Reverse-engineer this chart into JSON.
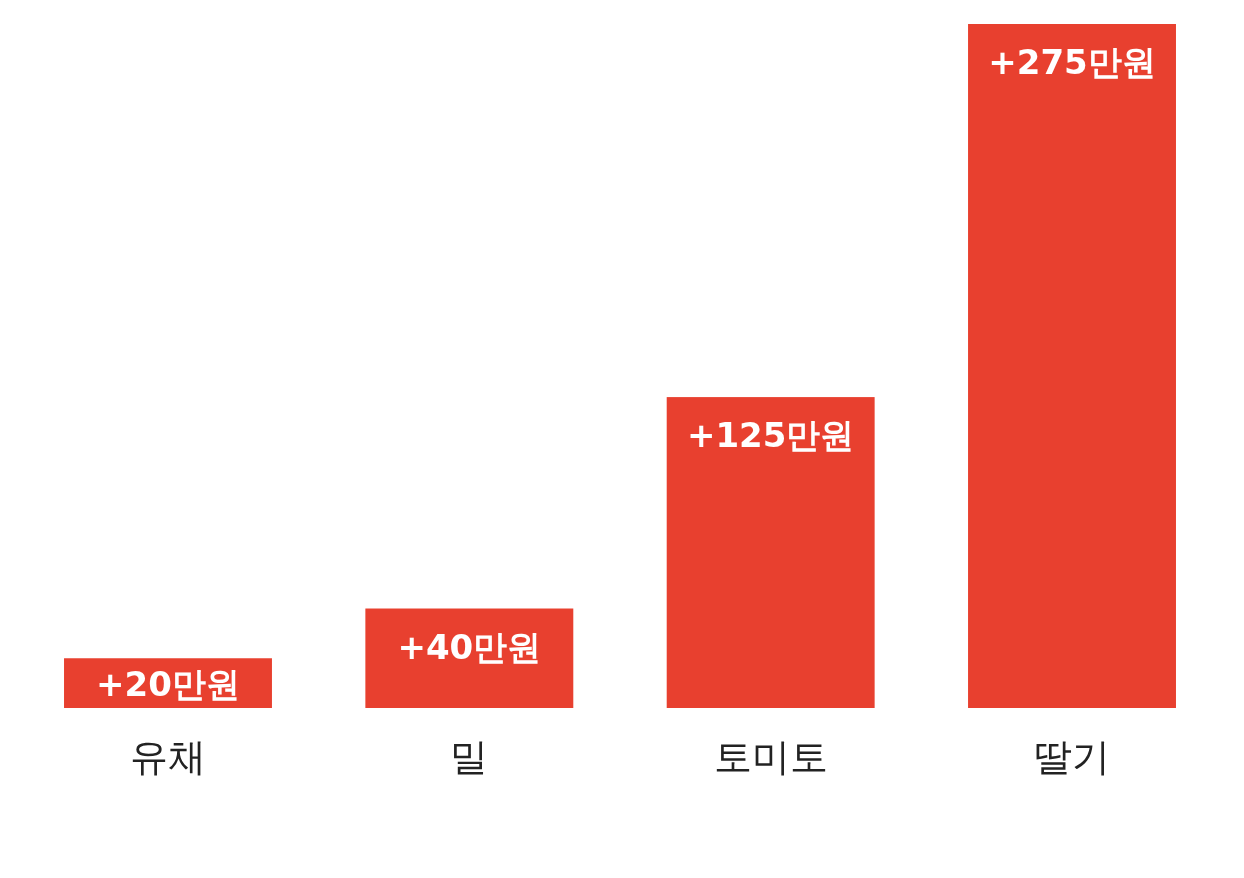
{
  "chart_data": {
    "type": "bar",
    "categories": [
      "유채",
      "밀",
      "토미토",
      "딸기"
    ],
    "values": [
      20,
      40,
      125,
      275
    ],
    "color": "#e8402f",
    "value_labels": [
      "+20만원",
      "+40만원",
      "+125만원",
      "+275만원"
    ]
  }
}
